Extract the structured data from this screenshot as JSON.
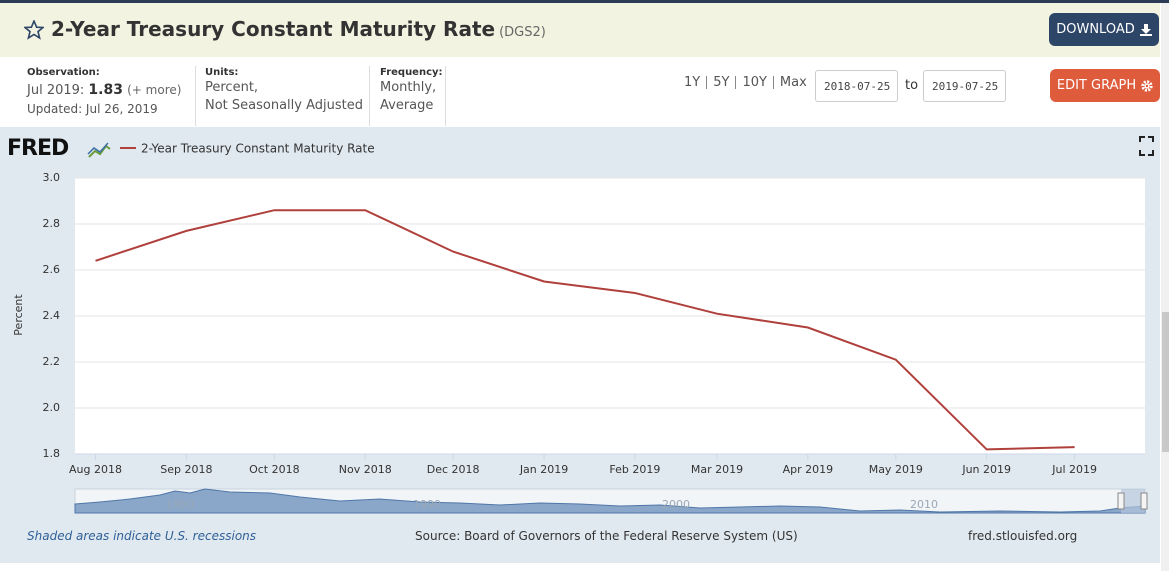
{
  "header": {
    "title": "2-Year Treasury Constant Maturity Rate",
    "series_id": "(DGS2)",
    "download": "DOWNLOAD"
  },
  "info": {
    "observation_label": "Observation:",
    "observation_date": "Jul 2019:",
    "observation_value": "1.83",
    "more": "(+ more)",
    "updated": "Updated: Jul 26, 2019",
    "units_label": "Units:",
    "units": [
      "Percent,",
      "Not Seasonally Adjusted"
    ],
    "frequency_label": "Frequency:",
    "frequency": [
      "Monthly,",
      "Average"
    ]
  },
  "controls": {
    "ranges": [
      "1Y",
      "5Y",
      "10Y",
      "Max"
    ],
    "to": "to",
    "edit": "EDIT GRAPH"
  },
  "logo": "FRED",
  "chart_data": {
    "type": "line",
    "y_label": "Percent",
    "xlim": [
      "2018-07-25",
      "2019-07-25"
    ],
    "x": [
      "2018-08",
      "2018-09",
      "2018-10",
      "2018-11",
      "2018-12",
      "2019-01",
      "2019-02",
      "2019-03",
      "2019-04",
      "2019-05",
      "2019-06",
      "2019-07"
    ],
    "xticks": [
      {
        "value": "2018-08",
        "label": "Aug 2018"
      },
      {
        "value": "2018-09",
        "label": "Sep 2018"
      },
      {
        "value": "2018-10",
        "label": "Oct 2018"
      },
      {
        "value": "2018-11",
        "label": "Nov 2018"
      },
      {
        "value": "2018-12",
        "label": "Dec 2018"
      },
      {
        "value": "2019-01",
        "label": "Jan 2019"
      },
      {
        "value": "2019-02",
        "label": "Feb 2019"
      },
      {
        "value": "2019-03",
        "label": "Mar 2019"
      },
      {
        "value": "2019-04",
        "label": "Apr 2019"
      },
      {
        "value": "2019-05",
        "label": "May 2019"
      },
      {
        "value": "2019-06",
        "label": "Jun 2019"
      },
      {
        "value": "2019-07",
        "label": "Jul 2019"
      }
    ],
    "series": [
      {
        "name": "2-Year Treasury Constant Maturity Rate",
        "color": "#b0403c",
        "values": [
          2.64,
          2.77,
          2.86,
          2.86,
          2.68,
          2.55,
          2.5,
          2.41,
          2.35,
          2.21,
          1.82,
          1.83
        ]
      }
    ],
    "ylim": [
      1.8,
      3.0
    ],
    "yticks": [
      {
        "value": 1.8,
        "label": "1.8"
      },
      {
        "value": 2.0,
        "label": "2.0"
      },
      {
        "value": 2.2,
        "label": "2.2"
      },
      {
        "value": 2.4,
        "label": "2.4"
      },
      {
        "value": 2.6,
        "label": "2.6"
      },
      {
        "value": 2.8,
        "label": "2.8"
      },
      {
        "value": 3.0,
        "label": "3.0"
      }
    ],
    "grid": true
  },
  "navigator": {
    "labels": [
      "1980",
      "1990",
      "2000",
      "2010"
    ]
  },
  "footer": {
    "recessions": "Shaded areas indicate U.S. recessions",
    "source": "Source: Board of Governors of the Federal Reserve System (US)",
    "site": "fred.stlouisfed.org"
  }
}
